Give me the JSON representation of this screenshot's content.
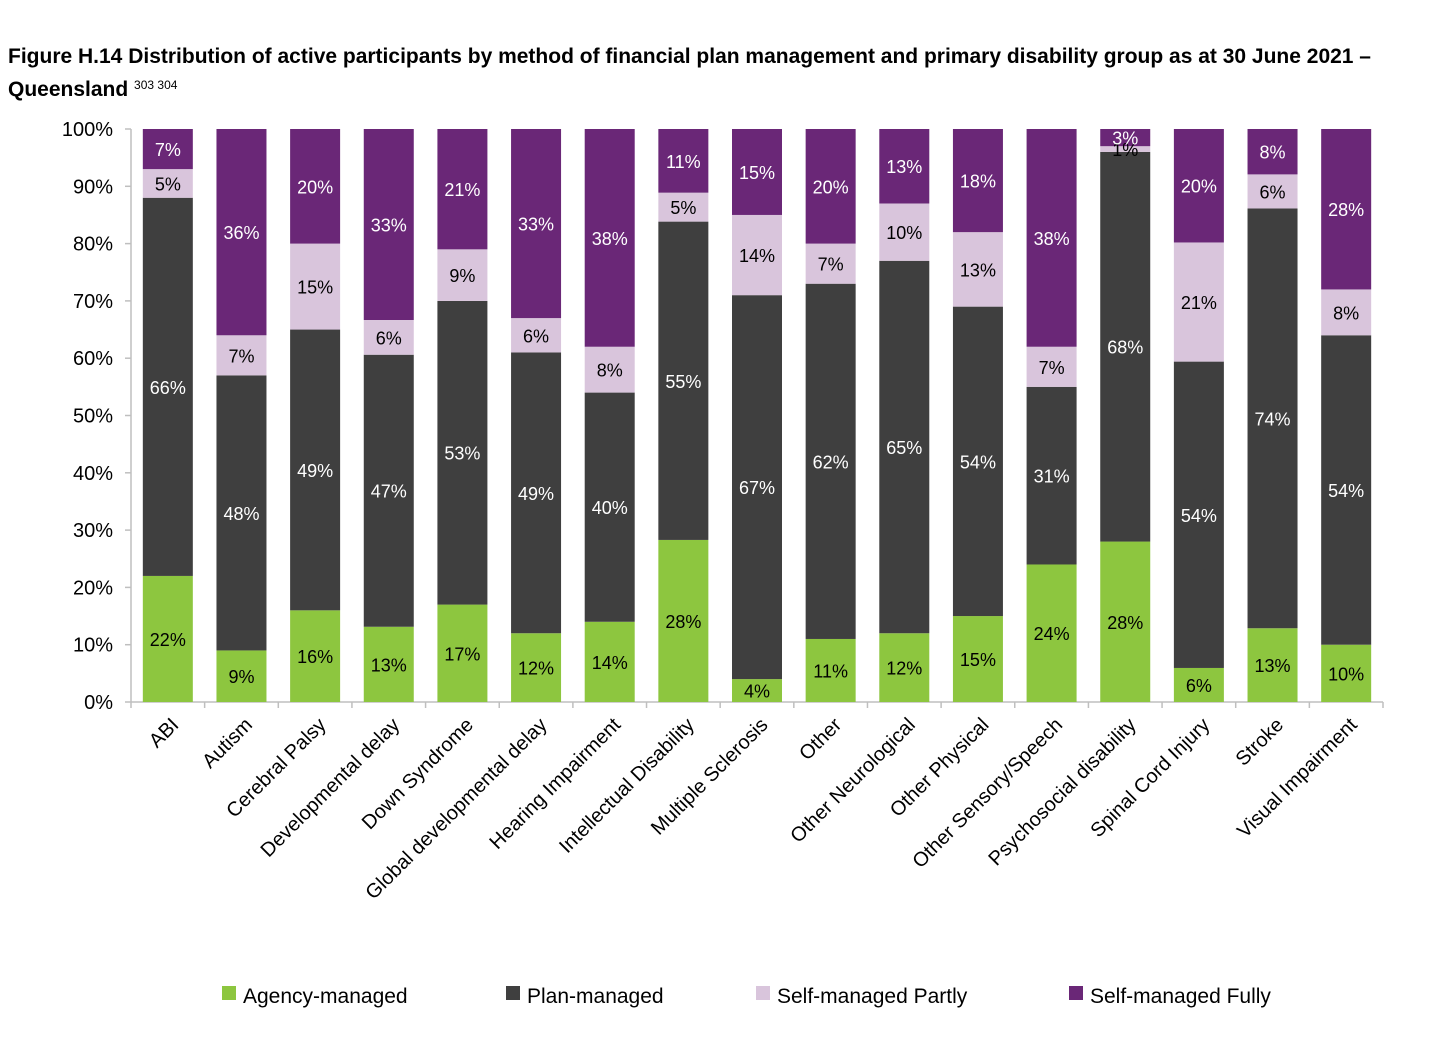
{
  "title": {
    "text": "Figure H.14 Distribution of active participants by method of financial plan management and primary disability group as at 30 June 2021 – Queensland",
    "footnotes": "303 304"
  },
  "chart_data": {
    "type": "bar",
    "stacked": true,
    "ylim": [
      0,
      100
    ],
    "yticks": [
      "0%",
      "10%",
      "20%",
      "30%",
      "40%",
      "50%",
      "60%",
      "70%",
      "80%",
      "90%",
      "100%"
    ],
    "categories": [
      "ABI",
      "Autism",
      "Cerebral Palsy",
      "Developmental delay",
      "Down Syndrome",
      "Global developmental delay",
      "Hearing Impairment",
      "Intellectual Disability",
      "Multiple Sclerosis",
      "Other",
      "Other Neurological",
      "Other Physical",
      "Other Sensory/Speech",
      "Psychosocial disability",
      "Spinal Cord Injury",
      "Stroke",
      "Visual Impairment"
    ],
    "series": [
      {
        "name": "Agency-managed",
        "color": "#8dc63f",
        "label_color": "#000000",
        "values": [
          22,
          9,
          16,
          13,
          17,
          12,
          14,
          28,
          4,
          11,
          12,
          15,
          24,
          28,
          6,
          13,
          10
        ]
      },
      {
        "name": "Plan-managed",
        "color": "#3f3f3f",
        "label_color": "#ffffff",
        "values": [
          66,
          48,
          49,
          47,
          53,
          49,
          40,
          55,
          67,
          62,
          65,
          54,
          31,
          68,
          54,
          74,
          54
        ]
      },
      {
        "name": "Self-managed Partly",
        "color": "#d9c5dc",
        "label_color": "#000000",
        "values": [
          5,
          7,
          15,
          6,
          9,
          6,
          8,
          5,
          14,
          7,
          10,
          13,
          7,
          1,
          21,
          6,
          8
        ]
      },
      {
        "name": "Self-managed Fully",
        "color": "#6a2777",
        "label_color": "#ffffff",
        "values": [
          7,
          36,
          20,
          33,
          21,
          33,
          38,
          11,
          15,
          20,
          13,
          18,
          38,
          3,
          20,
          8,
          28
        ]
      }
    ],
    "legend": "bottom",
    "grid": false
  }
}
